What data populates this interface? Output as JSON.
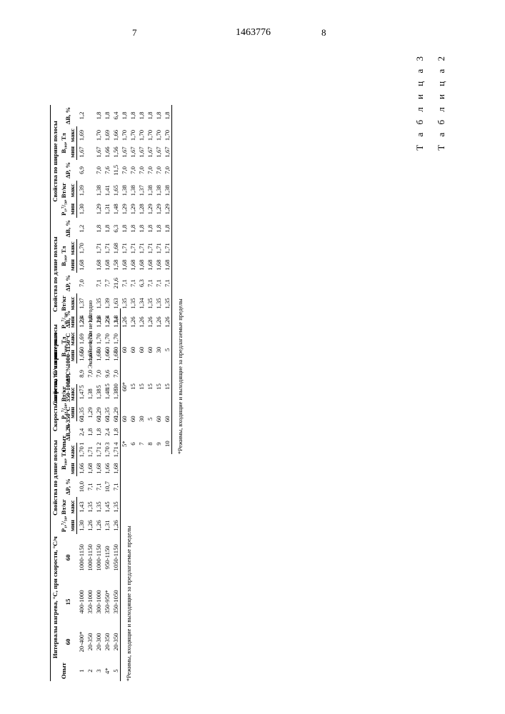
{
  "doc_number": "1463776",
  "page_left": "7",
  "page_right": "8",
  "table2": {
    "label": "Т а б л и ц а  2",
    "header_top": [
      "Опыт",
      "Скорость нагрева, °C/ч в интервал",
      "Свойства по длине полосы",
      "Свойства по ширине полосы"
    ],
    "header_cols_a": [
      "20-350°C",
      "350-1000°C",
      "1000-1150°C"
    ],
    "header_props": [
      "P₁,⁷/₅₀, Вт/кг",
      "ΔP, %",
      "B₁₀₀, Тл",
      "ΔB, %"
    ],
    "header_minmax": [
      "мин",
      "макс"
    ],
    "eco": "Экономически не выгодно",
    "rows": [
      {
        "n": "1",
        "c1": "60",
        "c2": "5",
        "c3": "60",
        "l_pmin": "1,28",
        "l_pmax": "1,37",
        "l_dp": "7,0",
        "l_bmin": "1,68",
        "l_bmax": "1,70",
        "l_db": "1,2",
        "w_pmin": "1,30",
        "w_pmax": "1,39",
        "w_dp": "6,9",
        "w_bmin": "1,67",
        "w_bmax": "1,69",
        "w_db": "1,2"
      },
      {
        "n": "2",
        "c1": "60",
        "c2": "5",
        "c3": "60",
        "l_pmin": "1,26",
        "l_pmax": "1,35",
        "l_dp": "7,1",
        "l_bmin": "1,68",
        "l_bmax": "1,71",
        "l_db": "1,8",
        "w_pmin": "1,29",
        "w_pmax": "1,38",
        "w_dp": "7,0",
        "w_bmin": "1,67",
        "w_bmax": "1,70",
        "w_db": "1,8"
      },
      {
        "n": "3",
        "c1": "60",
        "c2": "15",
        "c3": "60",
        "l_pmin": "1,29",
        "l_pmax": "1,39",
        "l_dp": "7,7",
        "l_bmin": "1,68",
        "l_bmax": "1,71",
        "l_db": "1,8",
        "w_pmin": "1,31",
        "w_pmax": "1,41",
        "w_dp": "7,6",
        "w_bmin": "1,66",
        "w_bmax": "1,69",
        "w_db": "1,8"
      },
      {
        "n": "4",
        "c1": "60",
        "c2": "30",
        "c3": "60",
        "l_pmin": "1,34",
        "l_pmax": "1,63",
        "l_dp": "21,6",
        "l_bmin": "1,58",
        "l_bmax": "1,68",
        "l_db": "6,3",
        "w_pmin": "1,48",
        "w_pmax": "1,65",
        "w_dp": "11,5",
        "w_bmin": "1,56",
        "w_bmax": "1,66",
        "w_db": "6,4"
      },
      {
        "n": "5*",
        "c1": "60",
        "c2": "60*",
        "c3": "60",
        "l_pmin": "1,26",
        "l_pmax": "1,35",
        "l_dp": "7,1",
        "l_bmin": "1,68",
        "l_bmax": "1,71",
        "l_db": "1,8",
        "w_pmin": "1,29",
        "w_pmax": "1,38",
        "w_dp": "7,0",
        "w_bmin": "1,67",
        "w_bmax": "1,70",
        "w_db": "1,8"
      },
      {
        "n": "6",
        "c1": "60",
        "c2": "15",
        "c3": "60",
        "l_pmin": "1,26",
        "l_pmax": "1,35",
        "l_dp": "7,1",
        "l_bmin": "1,68",
        "l_bmax": "1,71",
        "l_db": "1,8",
        "w_pmin": "1,29",
        "w_pmax": "1,38",
        "w_dp": "7,0",
        "w_bmin": "1,67",
        "w_bmax": "1,70",
        "w_db": "1,8"
      },
      {
        "n": "7",
        "c1": "30",
        "c2": "15",
        "c3": "60",
        "l_pmin": "1,26",
        "l_pmax": "1,34",
        "l_dp": "6,3",
        "l_bmin": "1,68",
        "l_bmax": "1,71",
        "l_db": "1,8",
        "w_pmin": "1,28",
        "w_pmax": "1,37",
        "w_dp": "7,0",
        "w_bmin": "1,67",
        "w_bmax": "1,70",
        "w_db": "1,8"
      },
      {
        "n": "8",
        "c1": "5",
        "c2": "15",
        "c3": "60",
        "l_pmin": "1,26",
        "l_pmax": "1,35",
        "l_dp": "7,1",
        "l_bmin": "1,68",
        "l_bmax": "1,71",
        "l_db": "1,8",
        "w_pmin": "1,29",
        "w_pmax": "1,38",
        "w_dp": "7,0",
        "w_bmin": "1,67",
        "w_bmax": "1,70",
        "w_db": "1,8"
      },
      {
        "n": "9",
        "c1": "60",
        "c2": "15",
        "c3": "30",
        "l_pmin": "1,26",
        "l_pmax": "1,35",
        "l_dp": "7,1",
        "l_bmin": "1,68",
        "l_bmax": "1,71",
        "l_db": "1,8",
        "w_pmin": "1,29",
        "w_pmax": "1,38",
        "w_dp": "7,0",
        "w_bmin": "1,67",
        "w_bmax": "1,70",
        "w_db": "1,8"
      },
      {
        "n": "10",
        "c1": "60",
        "c2": "15",
        "c3": "5",
        "l_pmin": "1,26",
        "l_pmax": "1,35",
        "l_dp": "7,1",
        "l_bmin": "1,68",
        "l_bmax": "1,71",
        "l_db": "1,8",
        "w_pmin": "1,29",
        "w_pmax": "1,38",
        "w_dp": "7,0",
        "w_bmin": "1,67",
        "w_bmax": "1,70",
        "w_db": "1,8"
      }
    ],
    "footnote": "*Режимы, входящие и выходящие за предлагаемые пределы"
  },
  "table3": {
    "label": "Т а б л и ц а  3",
    "header_top": [
      "Опыт",
      "Интервалы нагрева, °C, при скорости, °C/ч",
      "Свойства по длине полосы",
      "Свойства по ширине полосы"
    ],
    "header_cols_a": [
      "60",
      "15",
      "60"
    ],
    "header_props": [
      "P₁,⁷/₅₀, Вт/кг",
      "ΔP, %",
      "B₁₀₀, Тл",
      "ΔB, %"
    ],
    "header_minmax": [
      "мин",
      "макс"
    ],
    "rows": [
      {
        "n": "1",
        "c1": "20-400*",
        "c2": "400-1000",
        "c3": "1000-1150",
        "l_pmin": "1,30",
        "l_pmax": "1,43",
        "l_dp": "10,0",
        "l_bmin": "1,66",
        "l_bmax": "1,70",
        "l_db": "2,4",
        "w_pmin": "1,35",
        "w_pmax": "1,47",
        "w_dp": "8,9",
        "w_bmin": "1,65",
        "w_bmax": "1,69",
        "w_db": "2,4"
      },
      {
        "n": "2",
        "c1": "20-350",
        "c2": "350-1000",
        "c3": "1000-1150",
        "l_pmin": "1,26",
        "l_pmax": "1,35",
        "l_dp": "7,1",
        "l_bmin": "1,68",
        "l_bmax": "1,71",
        "l_db": "1,8",
        "w_pmin": "1,29",
        "w_pmax": "1,38",
        "w_dp": "7,0",
        "w_bmin": "1,67",
        "w_bmax": "1,70",
        "w_db": "1,8"
      },
      {
        "n": "3",
        "c1": "20-300",
        "c2": "300-1000",
        "c3": "1000-1150",
        "l_pmin": "1,26",
        "l_pmax": "1,35",
        "l_dp": "7,1",
        "l_bmin": "1,68",
        "l_bmax": "1,71",
        "l_db": "1,8",
        "w_pmin": "1,29",
        "w_pmax": "1,38",
        "w_dp": "7,0",
        "w_bmin": "1,67",
        "w_bmax": "1,70",
        "w_db": "1,8"
      },
      {
        "n": "4*",
        "c1": "20-350",
        "c2": "350-950*",
        "c3": "950-1150",
        "l_pmin": "1,31",
        "l_pmax": "1,45",
        "l_dp": "10,7",
        "l_bmin": "1,66",
        "l_bmax": "1,70",
        "l_db": "2,4",
        "w_pmin": "1,35",
        "w_pmax": "1,48",
        "w_dp": "9,6",
        "w_bmin": "1,66",
        "w_bmax": "1,70",
        "w_db": "2,4"
      },
      {
        "n": "5",
        "c1": "20-350",
        "c2": "350-1050",
        "c3": "1050-1150",
        "l_pmin": "1,26",
        "l_pmax": "1,35",
        "l_dp": "7,1",
        "l_bmin": "1,68",
        "l_bmax": "1,71",
        "l_db": "1,8",
        "w_pmin": "1,29",
        "w_pmax": "1,38",
        "w_dp": "7,0",
        "w_bmin": "1,67",
        "w_bmax": "1,70",
        "w_db": "1,8"
      }
    ],
    "footnote": "*Режимы, входящие и выходящие за предлагаемые пределы"
  }
}
